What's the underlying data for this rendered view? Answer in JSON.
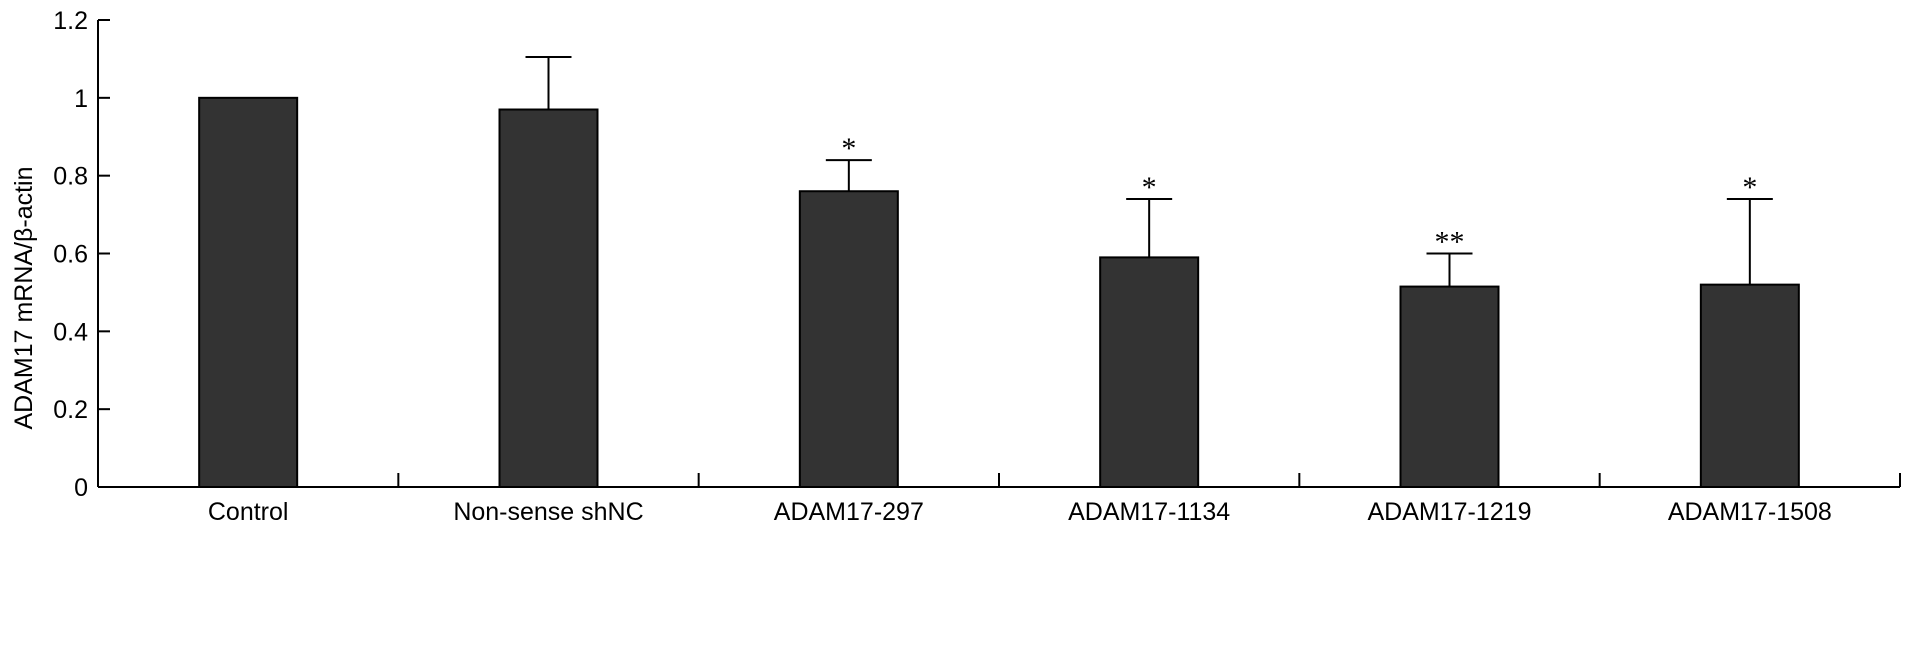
{
  "chart_data": {
    "type": "bar",
    "categories": [
      "Control",
      "Non-sense shNC",
      "ADAM17-297",
      "ADAM17-1134",
      "ADAM17-1219",
      "ADAM17-1508"
    ],
    "values": [
      1.0,
      0.97,
      0.76,
      0.59,
      0.515,
      0.52
    ],
    "error_upper": [
      0.0,
      1.105,
      0.84,
      0.74,
      0.6,
      0.74
    ],
    "significance": [
      "",
      "",
      "*",
      "*",
      "**",
      "*"
    ],
    "ylabel": "ADAM17 mRNA/β-actin",
    "xlabel": "",
    "ylim": [
      0,
      1.2
    ],
    "yticks": [
      0,
      0.2,
      0.4,
      0.6,
      0.8,
      1,
      1.2
    ],
    "ytick_labels": [
      "0",
      "0.2",
      "0.4",
      "0.6",
      "0.8",
      "1",
      "1.2"
    ],
    "bar_color": "#333333",
    "grid": false,
    "legend": "none"
  }
}
